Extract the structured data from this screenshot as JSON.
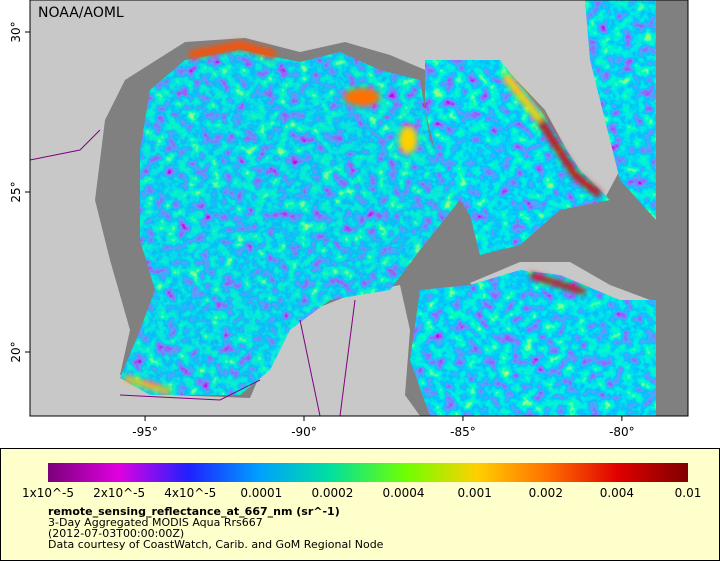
{
  "map": {
    "credit": "NOAA/AOML",
    "xlim": [
      -98.62,
      -77.92
    ],
    "ylim": [
      18.0,
      31.0
    ],
    "xticks": [
      {
        "value": -95,
        "label": "-95°"
      },
      {
        "value": -90,
        "label": "-90°"
      },
      {
        "value": -85,
        "label": "-85°"
      },
      {
        "value": -80,
        "label": "-80°"
      }
    ],
    "yticks": [
      {
        "value": 20,
        "label": "20°"
      },
      {
        "value": 25,
        "label": "25°"
      },
      {
        "value": 30,
        "label": "30°"
      }
    ]
  },
  "colorbar": {
    "labels": [
      "1x10^-5",
      "2x10^-5",
      "4x10^-5",
      "0.0001",
      "0.0002",
      "0.0004",
      "0.001",
      "0.002",
      "0.004",
      "0.01"
    ]
  },
  "caption": {
    "variable": "remote_sensing_reflectance_at_667_nm (sr^-1)",
    "product": "3-Day Aggregated MODIS Aqua Rrs667",
    "time": "(2012-07-03T00:00:00Z)",
    "credit": "Data courtesy of CoastWatch, Carib. and GoM Regional Node"
  }
}
